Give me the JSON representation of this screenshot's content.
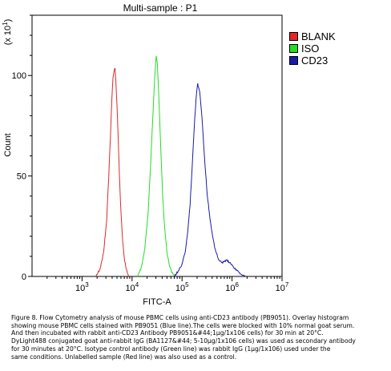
{
  "chart_data": {
    "type": "line",
    "title": "Multi-sample : P1",
    "xlabel": "FITC-A",
    "ylabel": "Count",
    "y_multiplier_label": "(x 10",
    "y_multiplier_exp": "1",
    "x_scale": "log",
    "xlim": [
      100,
      10000000
    ],
    "ylim": [
      0,
      130
    ],
    "x_ticks": [
      {
        "base": "10",
        "exp": "3",
        "value": 1000
      },
      {
        "base": "10",
        "exp": "4",
        "value": 10000
      },
      {
        "base": "10",
        "exp": "5",
        "value": 100000
      },
      {
        "base": "10",
        "exp": "6",
        "value": 1000000
      },
      {
        "base": "10",
        "exp": "7",
        "value": 10000000
      }
    ],
    "y_ticks": [
      {
        "label": "0",
        "value": 0
      },
      {
        "label": "50",
        "value": 50
      },
      {
        "label": "100",
        "value": 100
      }
    ],
    "legend_position": "right",
    "series": [
      {
        "name": "BLANK",
        "color": "#e0282a",
        "x": [
          1900,
          2300,
          2700,
          3100,
          3400,
          3700,
          3950,
          4150,
          4350,
          4550,
          4750,
          5000,
          5300,
          5600,
          6000,
          6500,
          7100,
          7800,
          8600
        ],
        "y": [
          0,
          4,
          12,
          28,
          48,
          70,
          88,
          99,
          102,
          104,
          97,
          85,
          68,
          50,
          32,
          18,
          8,
          3,
          0
        ]
      },
      {
        "name": "ISO",
        "color": "#22dd22",
        "x": [
          13000,
          15500,
          18000,
          21000,
          23500,
          25500,
          27500,
          29000,
          30500,
          32000,
          33500,
          35500,
          38000,
          41000,
          45000,
          50000,
          56000,
          63000,
          72000
        ],
        "y": [
          0,
          5,
          14,
          32,
          55,
          75,
          92,
          103,
          110,
          106,
          96,
          80,
          60,
          40,
          24,
          12,
          5,
          2,
          0
        ]
      },
      {
        "name": "CD23",
        "color": "#1a1aaa",
        "x": [
          70000,
          85000,
          100000,
          115000,
          130000,
          145000,
          160000,
          175000,
          190000,
          205000,
          225000,
          250000,
          280000,
          320000,
          380000,
          450000,
          550000,
          650000,
          780000,
          900000,
          1050000,
          1250000,
          1500000,
          1900000
        ],
        "y": [
          0,
          3,
          6,
          12,
          22,
          36,
          55,
          74,
          88,
          96,
          92,
          80,
          60,
          40,
          25,
          14,
          8,
          7,
          8,
          7,
          5,
          3,
          1,
          0
        ]
      }
    ]
  },
  "caption": {
    "lines": [
      "Figure 8. Flow Cytometry analysis of mouse PBMC cells using anti-CD23 antibody (PB9051). Overlay histogram",
      "showing mouse PBMC cells stained with PB9051 (Blue line).The cells were blocked with 10% normal goat serum.",
      "And then incubated with rabbit anti-CD23 Antibody PB9051&#44;1μg/1x106 cells) for 30 min at 20°C.",
      "DyLight488 conjugated goat anti-rabbit IgG (BA1127&#44; 5-10μg/1x106 cells) was used as secondary antibody",
      "for 30 minutes at 20°C. Isotype control antibody (Green line) was rabbit IgG (1μg/1x106) used under the",
      "same conditions. Unlabelled sample (Red line) was also used as a control."
    ]
  }
}
